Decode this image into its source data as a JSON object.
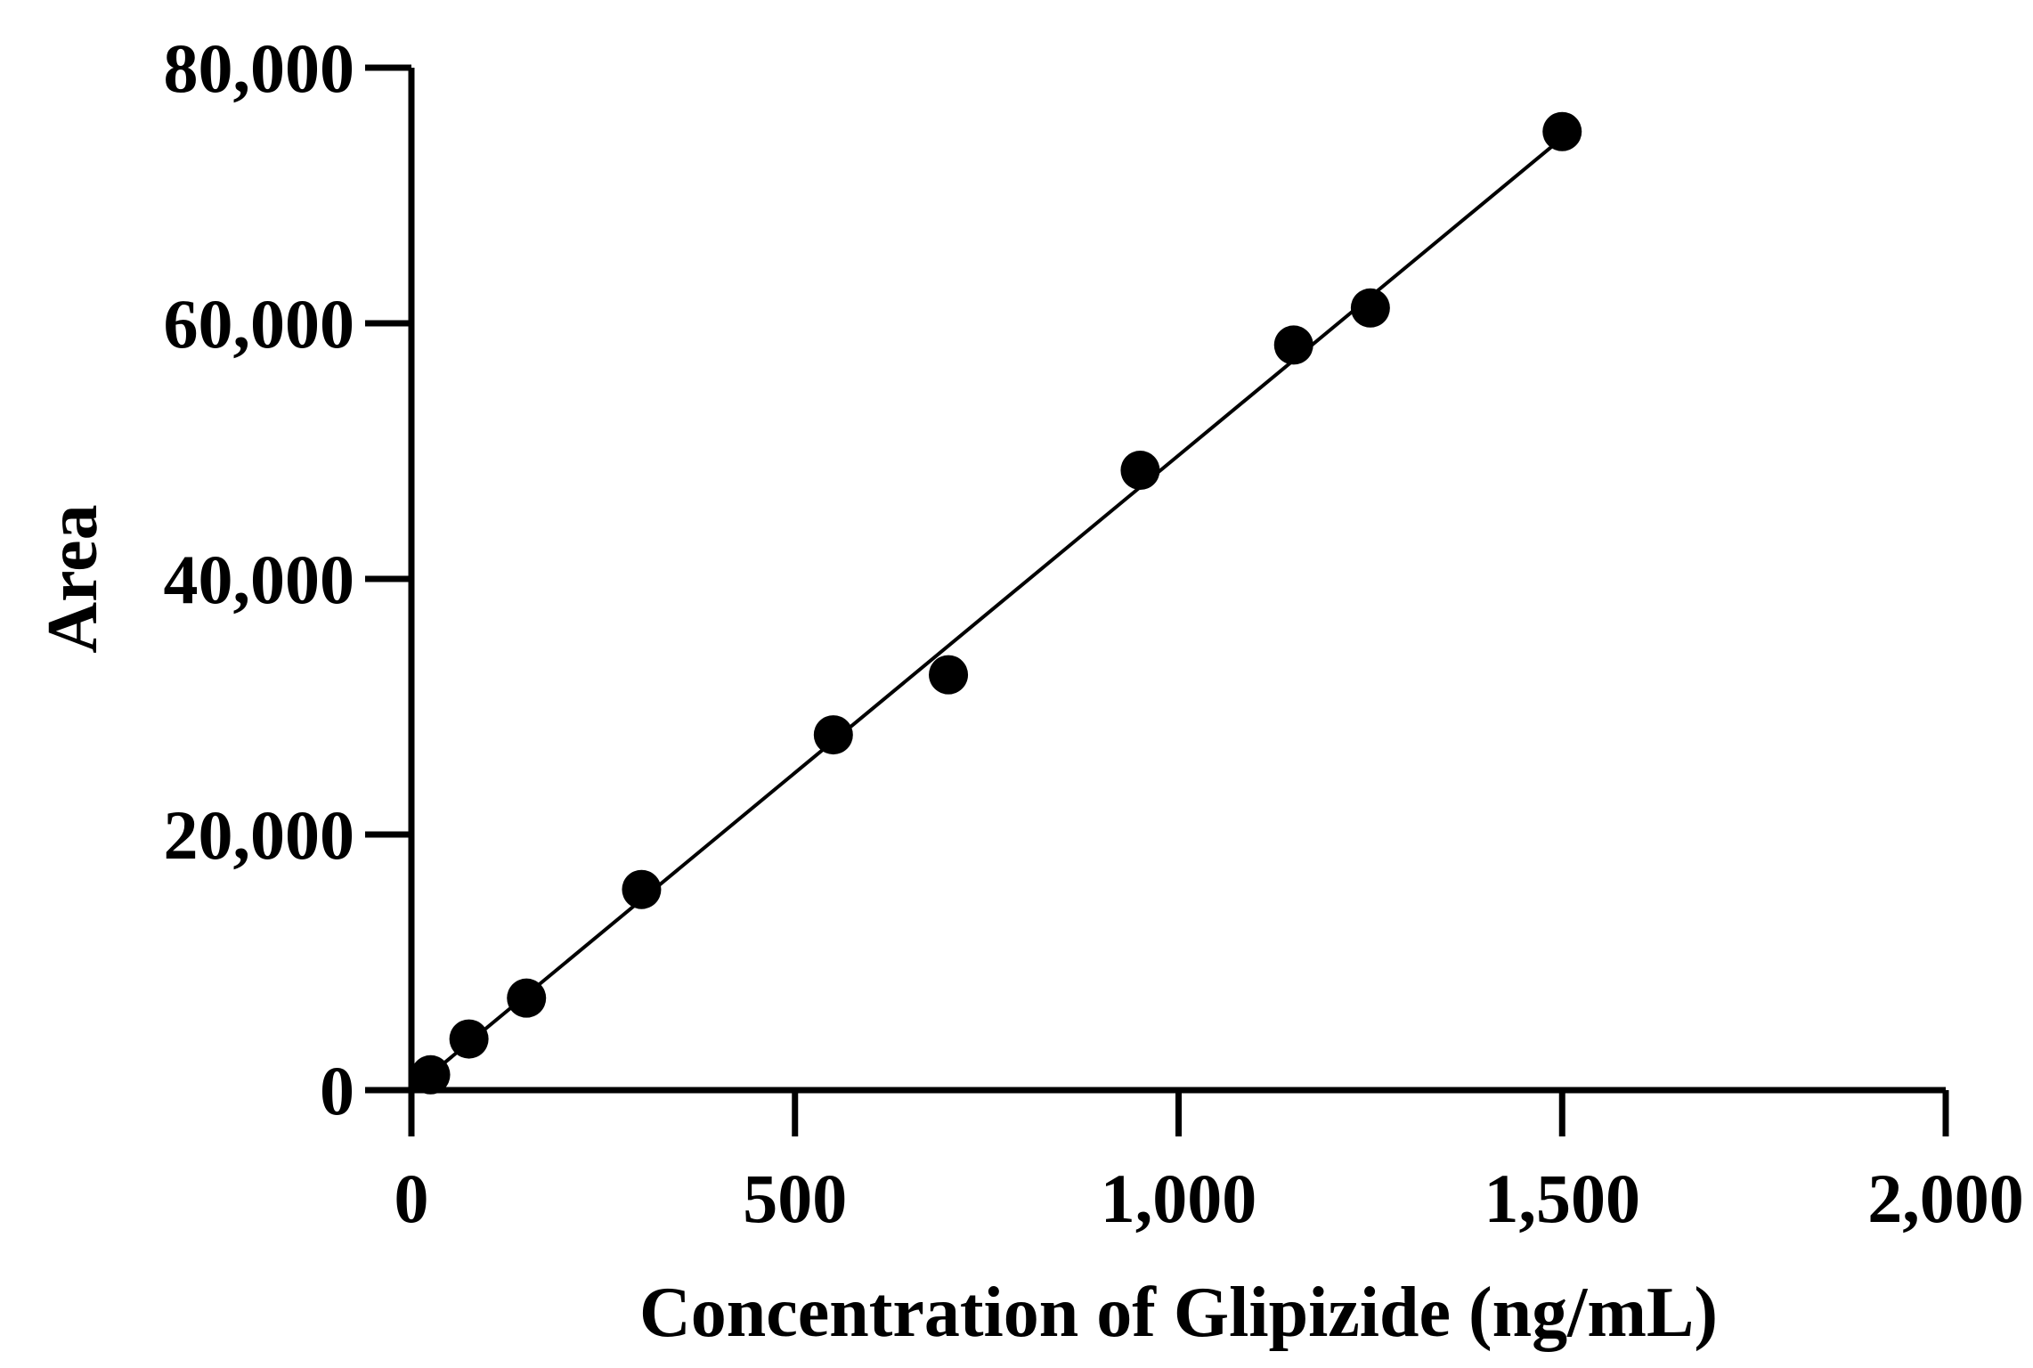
{
  "chart_data": {
    "type": "scatter",
    "title": "",
    "xlabel": "Concentration of Glipizide (ng/mL)",
    "ylabel": "Area",
    "xlim": [
      0,
      2000
    ],
    "ylim": [
      0,
      80000
    ],
    "x_ticks": [
      0,
      500,
      1000,
      1500,
      2000
    ],
    "x_tick_labels": [
      "0",
      "500",
      "1,000",
      "1,500",
      "2,000"
    ],
    "y_ticks": [
      0,
      20000,
      40000,
      60000,
      80000
    ],
    "y_tick_labels": [
      "0",
      "20,000",
      "40,000",
      "60,000",
      "80,000"
    ],
    "grid": false,
    "legend": "none",
    "series": [
      {
        "values": [
          {
            "x": 25,
            "y": 1200
          },
          {
            "x": 75,
            "y": 4000
          },
          {
            "x": 150,
            "y": 7200
          },
          {
            "x": 300,
            "y": 15700
          },
          {
            "x": 550,
            "y": 27800
          },
          {
            "x": 700,
            "y": 32500
          },
          {
            "x": 950,
            "y": 48500
          },
          {
            "x": 1150,
            "y": 58300
          },
          {
            "x": 1250,
            "y": 61200
          },
          {
            "x": 1500,
            "y": 75000
          }
        ]
      }
    ],
    "fit_line": {
      "x": [
        0,
        1500
      ],
      "y": [
        0,
        74500
      ]
    },
    "colors": {
      "marker": "#000000",
      "line": "#000000"
    }
  }
}
